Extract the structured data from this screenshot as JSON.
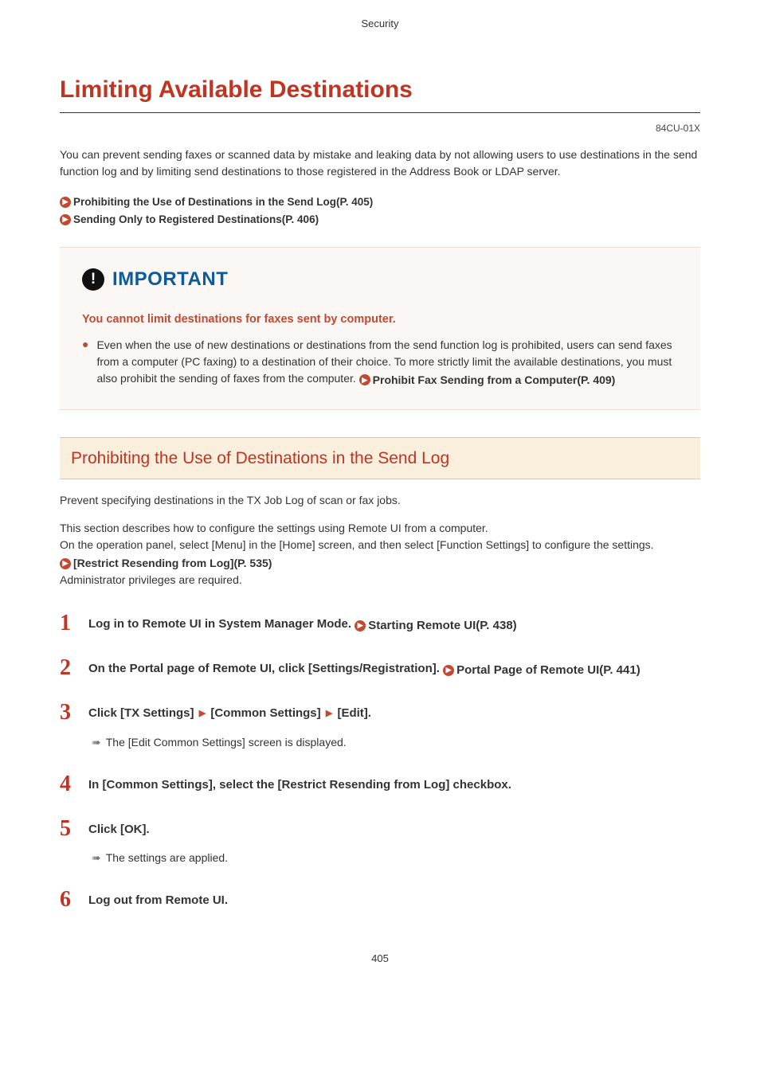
{
  "header": {
    "category": "Security"
  },
  "title": "Limiting Available Destinations",
  "doc_code": "84CU-01X",
  "intro": "You can prevent sending faxes or scanned data by mistake and leaking data by not allowing users to use destinations in the send function log and by limiting send destinations to those registered in the Address Book or LDAP server.",
  "toc": [
    "Prohibiting the Use of Destinations in the Send Log(P. 405)",
    "Sending Only to Registered Destinations(P. 406)"
  ],
  "important": {
    "label": "IMPORTANT",
    "subtitle": "You cannot limit destinations for faxes sent by computer.",
    "body_pre": "Even when the use of new destinations or destinations from the send function log is prohibited, users can send faxes from a computer (PC faxing) to a destination of their choice. To more strictly limit the available destinations, you must also prohibit the sending of faxes from the computer. ",
    "body_link": "Prohibit Fax Sending from a Computer(P. 409)"
  },
  "section": {
    "heading": "Prohibiting the Use of Destinations in the Send Log",
    "p1": "Prevent specifying destinations in the TX Job Log of scan or fax jobs.",
    "p2a": "This section describes how to configure the settings using Remote UI from a computer.",
    "p2b_pre": "On the operation panel, select [Menu] in the [Home] screen, and then select [Function Settings] to configure the settings. ",
    "p2b_link": "[Restrict Resending from Log](P. 535)",
    "p2c": "Administrator privileges are required."
  },
  "steps": [
    {
      "head_pre": "Log in to Remote UI in System Manager Mode. ",
      "head_link": "Starting Remote UI(P. 438)"
    },
    {
      "head_pre": "On the Portal page of Remote UI, click [Settings/Registration]. ",
      "head_link": "Portal Page of Remote UI(P. 441)"
    },
    {
      "head_parts": [
        "Click [TX Settings] ",
        " [Common Settings] ",
        " [Edit]."
      ],
      "note": "The [Edit Common Settings] screen is displayed."
    },
    {
      "head_pre": "In [Common Settings], select the [Restrict Resending from Log] checkbox."
    },
    {
      "head_pre": "Click [OK].",
      "note": "The settings are applied."
    },
    {
      "head_pre": "Log out from Remote UI."
    }
  ],
  "page_number": "405",
  "colors": {
    "accent": "#bf3521",
    "link_orange": "#c24a32",
    "blue": "#0b5c9c"
  }
}
